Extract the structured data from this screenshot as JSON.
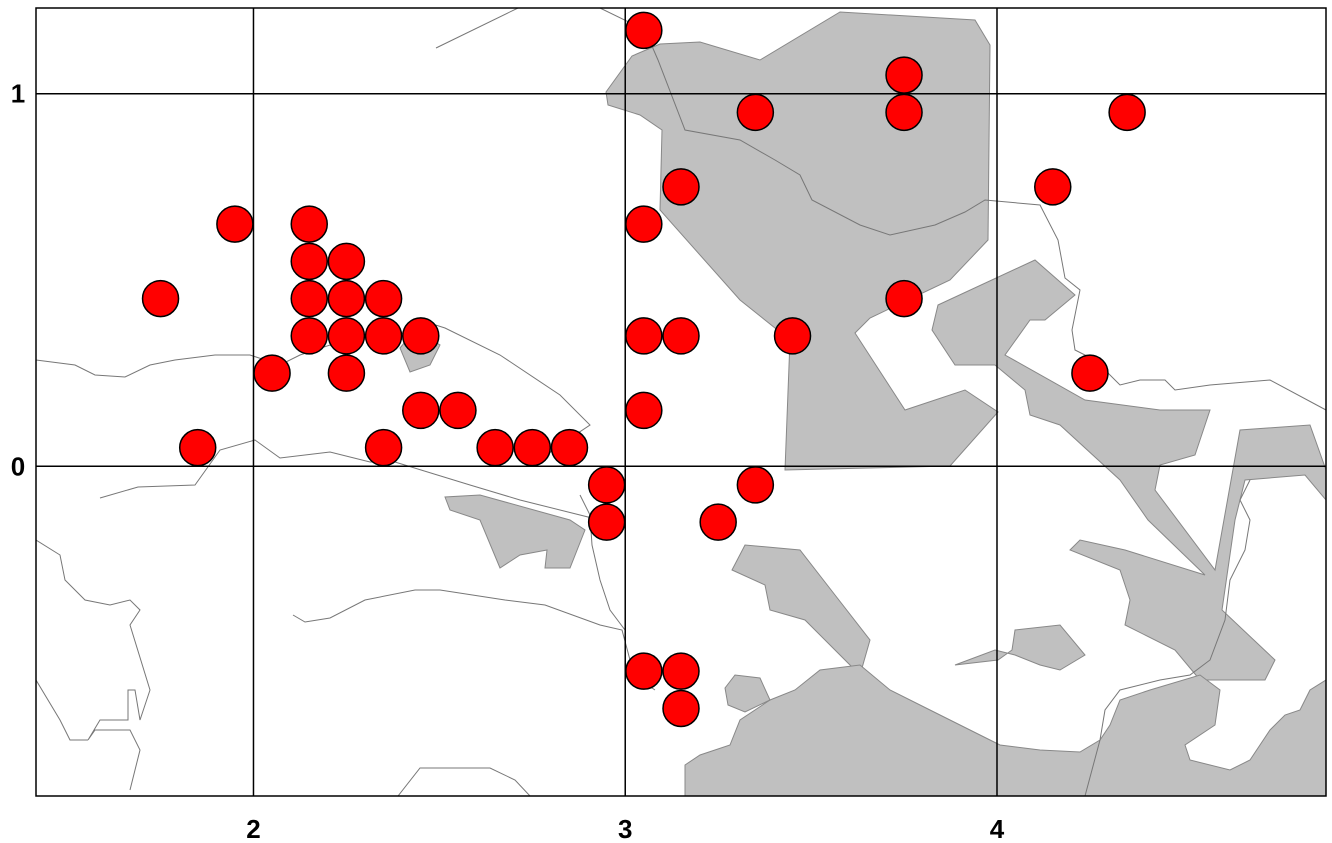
{
  "map": {
    "x_ticks": [
      {
        "value": 2,
        "label": "2"
      },
      {
        "value": 3,
        "label": "3"
      },
      {
        "value": 4,
        "label": "4"
      }
    ],
    "y_ticks": [
      {
        "value": 1,
        "label": "1"
      },
      {
        "value": 0,
        "label": "0"
      }
    ],
    "x_range": [
      1.415,
      4.885
    ],
    "y_range": [
      -0.885,
      1.23
    ],
    "colors": {
      "point_fill": "#ff0000",
      "point_stroke": "#000000",
      "region_fill": "#c0c0c0",
      "boundary": "#777777",
      "grid": "#000000",
      "background": "#ffffff"
    },
    "points": [
      [
        3.05,
        1.17
      ],
      [
        3.35,
        0.95
      ],
      [
        3.75,
        1.05
      ],
      [
        3.75,
        0.95
      ],
      [
        4.35,
        0.95
      ],
      [
        3.15,
        0.75
      ],
      [
        4.15,
        0.75
      ],
      [
        1.95,
        0.65
      ],
      [
        2.15,
        0.65
      ],
      [
        3.05,
        0.65
      ],
      [
        2.15,
        0.55
      ],
      [
        2.25,
        0.55
      ],
      [
        1.75,
        0.45
      ],
      [
        2.15,
        0.45
      ],
      [
        2.25,
        0.45
      ],
      [
        2.35,
        0.45
      ],
      [
        3.75,
        0.45
      ],
      [
        2.15,
        0.35
      ],
      [
        2.25,
        0.35
      ],
      [
        2.35,
        0.35
      ],
      [
        2.45,
        0.35
      ],
      [
        3.05,
        0.35
      ],
      [
        3.15,
        0.35
      ],
      [
        3.45,
        0.35
      ],
      [
        2.05,
        0.25
      ],
      [
        2.25,
        0.25
      ],
      [
        4.25,
        0.25
      ],
      [
        2.45,
        0.15
      ],
      [
        2.55,
        0.15
      ],
      [
        3.05,
        0.15
      ],
      [
        1.85,
        0.05
      ],
      [
        2.35,
        0.05
      ],
      [
        2.65,
        0.05
      ],
      [
        2.75,
        0.05
      ],
      [
        2.85,
        0.05
      ],
      [
        2.95,
        -0.05
      ],
      [
        3.35,
        -0.05
      ],
      [
        2.95,
        -0.15
      ],
      [
        3.25,
        -0.15
      ],
      [
        3.05,
        -0.55
      ],
      [
        3.15,
        -0.55
      ],
      [
        3.15,
        -0.65
      ]
    ]
  }
}
